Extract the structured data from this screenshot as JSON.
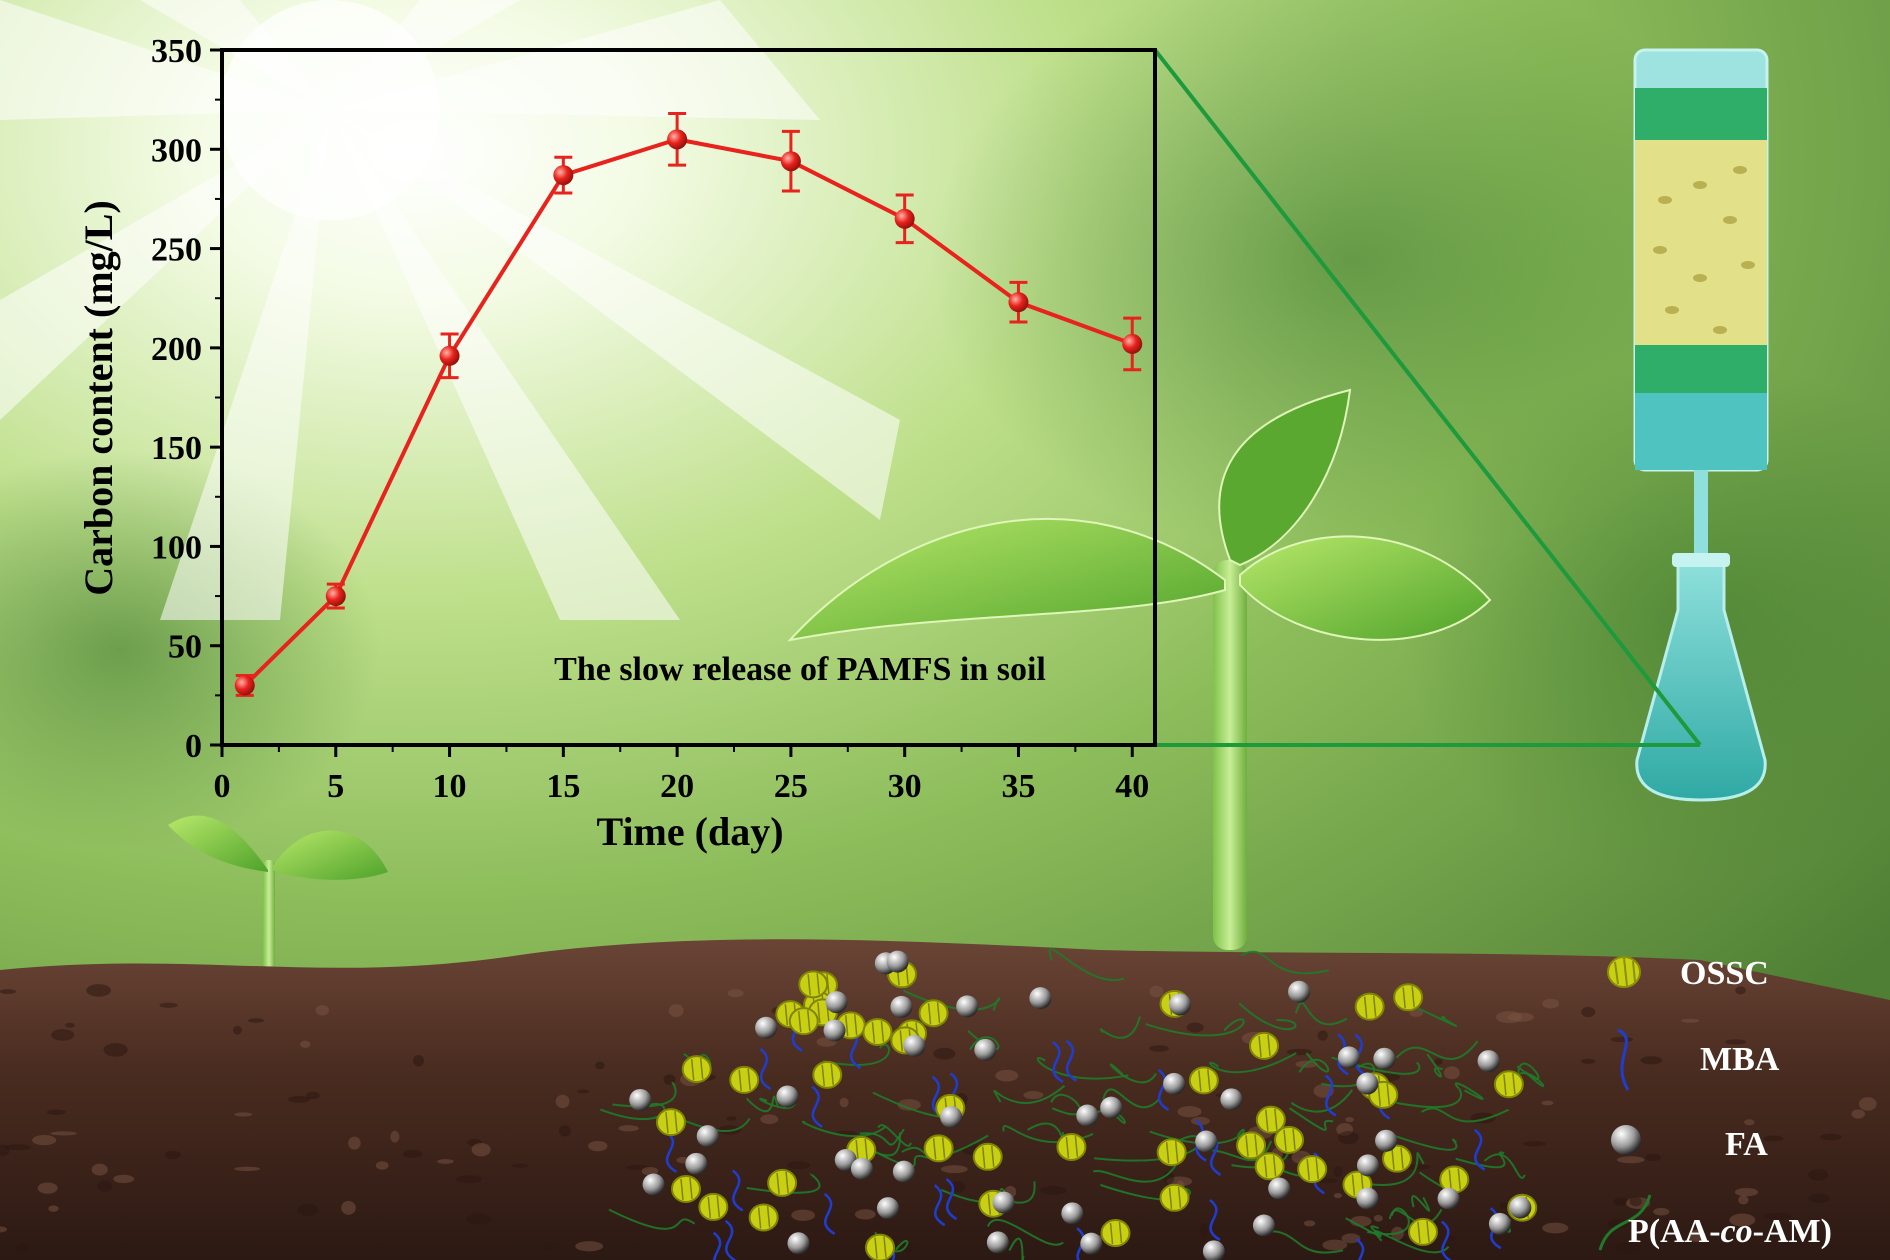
{
  "chart_data": {
    "type": "line",
    "title": "The slow release of PAMFS in soil",
    "xlabel": "Time (day)",
    "ylabel": "Carbon content (mg/L)",
    "xlim": [
      0,
      41
    ],
    "ylim": [
      0,
      350
    ],
    "xticks": [
      0,
      5,
      10,
      15,
      20,
      25,
      30,
      35,
      40
    ],
    "yticks": [
      0,
      50,
      100,
      150,
      200,
      250,
      300,
      350
    ],
    "grid": false,
    "series": [
      {
        "x": [
          1,
          5,
          10,
          15,
          20,
          25,
          30,
          35,
          40
        ],
        "y": [
          30,
          75,
          196,
          287,
          305,
          294,
          265,
          223,
          202
        ],
        "error": [
          5,
          6,
          11,
          9,
          13,
          15,
          12,
          10,
          13
        ],
        "color": "#e8221c"
      }
    ]
  },
  "legend": {
    "items": [
      {
        "label": "OSSC",
        "icon": "ossc-particle-icon"
      },
      {
        "label": "MBA",
        "icon": "mba-crosslinker-icon"
      },
      {
        "label": "FA",
        "icon": "fa-sphere-icon"
      },
      {
        "label_parts": [
          "P(AA-",
          "co",
          "-AM)"
        ],
        "icon": "polymer-chain-icon"
      }
    ]
  },
  "colors": {
    "series_red": "#e8221c",
    "projection_green": "#1e9a3c",
    "ossc_yellow": "#c9cf12",
    "mba_blue": "#1f3dd0",
    "polymer_green": "#1f7a2a",
    "soil_brown": "#4a2c20",
    "column_teal": "#4fc3c0"
  }
}
